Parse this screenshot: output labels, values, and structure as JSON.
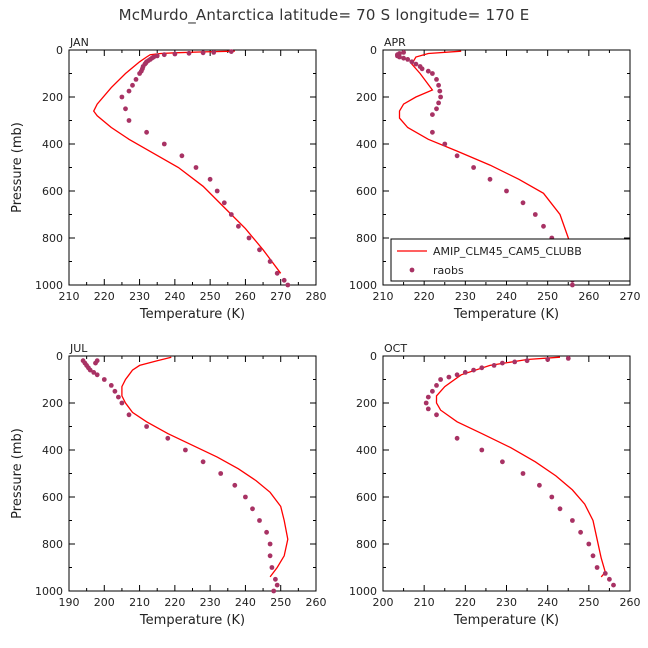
{
  "title": "McMurdo_Antarctica  latitude= 70 S longitude= 170 E",
  "colors": {
    "model": "#ff0000",
    "obs": "#a83264",
    "axis": "#000000"
  },
  "chart_data": [
    {
      "type": "line",
      "panel": "JAN",
      "xlabel": "Temperature (K)",
      "ylabel": "Pressure (mb)",
      "xlim": [
        210,
        280
      ],
      "ylim": [
        0,
        1000
      ],
      "xticks": [
        "210",
        "220",
        "230",
        "240",
        "250",
        "260",
        "270",
        "280"
      ],
      "yticks": [
        "0",
        "200",
        "400",
        "600",
        "800",
        "1000"
      ],
      "legend": null,
      "series": [
        {
          "name": "AMIP_CLM45_CAM5_CLUBB",
          "kind": "line",
          "x": [
            257,
            248,
            240,
            236,
            233,
            232,
            230,
            226,
            222,
            218,
            217,
            218,
            222,
            227,
            234,
            241,
            248,
            254,
            260,
            265,
            270
          ],
          "y": [
            5,
            8,
            12,
            15,
            20,
            30,
            50,
            100,
            160,
            230,
            260,
            280,
            330,
            380,
            440,
            500,
            580,
            670,
            760,
            850,
            950
          ]
        },
        {
          "name": "raobs",
          "kind": "points",
          "x": [
            256,
            251,
            248,
            244,
            240,
            237,
            235,
            234,
            233.5,
            233,
            232.5,
            232,
            231.8,
            231.5,
            231,
            230.8,
            230.5,
            230,
            229,
            228,
            227,
            225,
            226,
            227,
            232,
            237,
            242,
            246,
            250,
            252,
            254,
            256,
            258,
            261,
            264,
            267,
            269,
            271,
            272
          ],
          "y": [
            7,
            10,
            12,
            14,
            17,
            20,
            25,
            30,
            35,
            40,
            45,
            50,
            55,
            60,
            70,
            80,
            90,
            100,
            125,
            150,
            175,
            200,
            250,
            300,
            350,
            400,
            450,
            500,
            550,
            600,
            650,
            700,
            750,
            800,
            850,
            900,
            950,
            980,
            1000
          ]
        }
      ]
    },
    {
      "type": "line",
      "panel": "APR",
      "xlabel": "Temperature (K)",
      "ylabel": "",
      "xlim": [
        210,
        270
      ],
      "ylim": [
        0,
        1000
      ],
      "xticks": [
        "210",
        "220",
        "230",
        "240",
        "250",
        "260",
        "270"
      ],
      "yticks": [
        "0",
        "200",
        "400",
        "600",
        "800",
        "1000"
      ],
      "legend": {
        "placement": "lower-right",
        "entries": [
          "AMIP_CLM45_CAM5_CLUBB",
          "raobs"
        ]
      },
      "series": [
        {
          "name": "AMIP_CLM45_CAM5_CLUBB",
          "kind": "line",
          "x": [
            229,
            221,
            218,
            217,
            219,
            222,
            218,
            215,
            214,
            214,
            216,
            221,
            228,
            236,
            243,
            249,
            253,
            255,
            257,
            261
          ],
          "y": [
            5,
            15,
            30,
            60,
            100,
            170,
            200,
            230,
            260,
            290,
            330,
            380,
            430,
            490,
            550,
            610,
            700,
            800,
            880,
            950
          ]
        },
        {
          "name": "raobs",
          "kind": "points",
          "x": [
            215,
            214,
            213.5,
            213.5,
            214,
            215,
            216,
            217,
            218,
            219,
            219.5,
            221,
            222,
            223,
            223.5,
            223.8,
            224,
            223.5,
            223,
            222,
            222,
            225,
            228,
            232,
            236,
            240,
            244,
            247,
            249,
            251,
            253,
            254,
            255,
            256,
            256
          ],
          "y": [
            10,
            15,
            20,
            25,
            30,
            35,
            40,
            50,
            60,
            70,
            80,
            90,
            100,
            125,
            150,
            175,
            200,
            225,
            250,
            275,
            350,
            400,
            450,
            500,
            550,
            600,
            650,
            700,
            750,
            800,
            850,
            900,
            950,
            980,
            1000
          ]
        }
      ]
    },
    {
      "type": "line",
      "panel": "JUL",
      "xlabel": "Temperature (K)",
      "ylabel": "Pressure (mb)",
      "xlim": [
        190,
        260
      ],
      "ylim": [
        0,
        1000
      ],
      "xticks": [
        "190",
        "200",
        "210",
        "220",
        "230",
        "240",
        "250",
        "260"
      ],
      "yticks": [
        "0",
        "200",
        "400",
        "600",
        "800",
        "1000"
      ],
      "legend": null,
      "series": [
        {
          "name": "AMIP_CLM45_CAM5_CLUBB",
          "kind": "line",
          "x": [
            219,
            215,
            210,
            208,
            207,
            206,
            205,
            205,
            206,
            208,
            212,
            218,
            225,
            232,
            238,
            243,
            247,
            250,
            251,
            252,
            251,
            249,
            247
          ],
          "y": [
            5,
            20,
            40,
            60,
            80,
            100,
            130,
            170,
            200,
            240,
            280,
            330,
            380,
            430,
            480,
            530,
            580,
            640,
            700,
            780,
            850,
            900,
            940
          ]
        },
        {
          "name": "raobs",
          "kind": "points",
          "x": [
            198,
            197.5,
            194,
            194.5,
            195,
            195.5,
            196,
            197,
            198,
            200,
            202,
            203,
            204,
            205,
            207,
            212,
            218,
            223,
            228,
            233,
            237,
            240,
            242,
            244,
            246,
            247,
            247,
            247.5,
            248.5,
            249,
            248
          ],
          "y": [
            20,
            30,
            20,
            30,
            40,
            50,
            60,
            70,
            80,
            100,
            125,
            150,
            175,
            200,
            250,
            300,
            350,
            400,
            450,
            500,
            550,
            600,
            650,
            700,
            750,
            800,
            850,
            900,
            950,
            975,
            1000
          ]
        }
      ]
    },
    {
      "type": "line",
      "panel": "OCT",
      "xlabel": "Temperature (K)",
      "ylabel": "",
      "xlim": [
        200,
        260
      ],
      "ylim": [
        0,
        1000
      ],
      "xticks": [
        "200",
        "210",
        "220",
        "230",
        "240",
        "250",
        "260"
      ],
      "yticks": [
        "0",
        "200",
        "400",
        "600",
        "800",
        "1000"
      ],
      "legend": null,
      "series": [
        {
          "name": "AMIP_CLM45_CAM5_CLUBB",
          "kind": "line",
          "x": [
            243,
            235,
            226,
            219,
            215,
            213,
            213,
            214,
            218,
            224,
            231,
            237,
            242,
            246,
            249,
            251,
            252,
            253,
            254,
            253
          ],
          "y": [
            5,
            15,
            40,
            80,
            130,
            170,
            200,
            230,
            280,
            330,
            390,
            450,
            510,
            570,
            630,
            700,
            780,
            860,
            920,
            940
          ]
        },
        {
          "name": "raobs",
          "kind": "points",
          "x": [
            245,
            240,
            235,
            232,
            229,
            227,
            224,
            222,
            220,
            218,
            216,
            214,
            213,
            212,
            211,
            210.5,
            211,
            213,
            218,
            224,
            229,
            234,
            238,
            241,
            243,
            246,
            248,
            250,
            251,
            252,
            254,
            255,
            256
          ],
          "y": [
            10,
            15,
            20,
            25,
            30,
            40,
            50,
            60,
            70,
            80,
            90,
            100,
            125,
            150,
            175,
            200,
            225,
            250,
            350,
            400,
            450,
            500,
            550,
            600,
            650,
            700,
            750,
            800,
            850,
            900,
            925,
            950,
            975
          ]
        }
      ]
    }
  ]
}
